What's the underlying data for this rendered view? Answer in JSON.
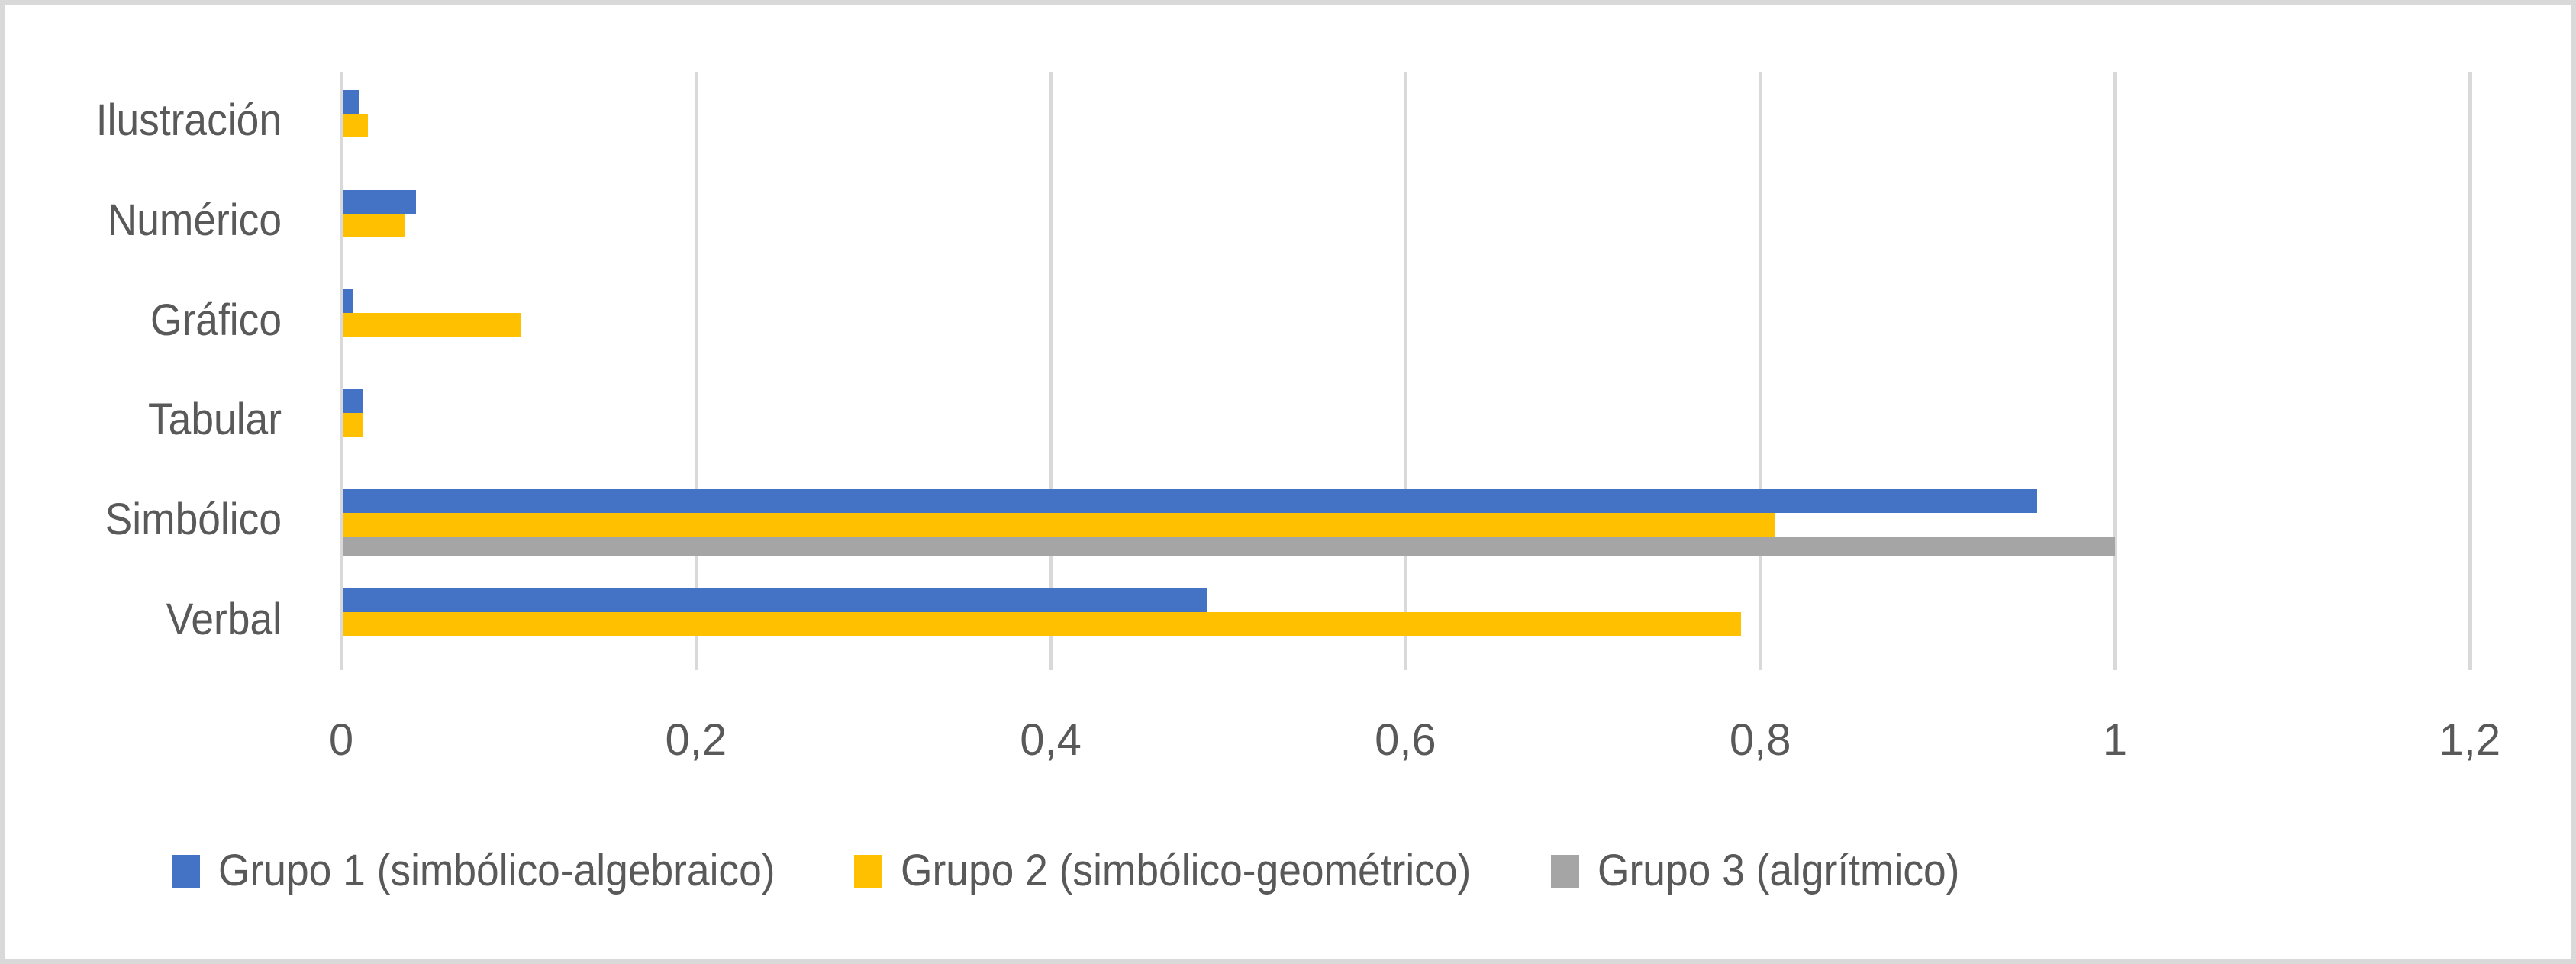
{
  "chart_data": {
    "type": "bar",
    "orientation": "horizontal",
    "title": "",
    "xlabel": "",
    "ylabel": "",
    "categories": [
      "Ilustración",
      "Numérico",
      "Gráfico",
      "Tabular",
      "Simbólico",
      "Verbal"
    ],
    "series": [
      {
        "name": "Grupo 1 (simbólico-algebraico)",
        "color": "#4472c4",
        "values": [
          0.01,
          0.042,
          0.007,
          0.012,
          0.956,
          0.488
        ]
      },
      {
        "name": "Grupo 2 (simbólico-geométrico)",
        "color": "#ffc000",
        "values": [
          0.015,
          0.036,
          0.101,
          0.012,
          0.808,
          0.789
        ]
      },
      {
        "name": "Grupo 3 (algrítmico)",
        "color": "#a5a5a5",
        "values": [
          0,
          0,
          0,
          0,
          1.0,
          0
        ]
      }
    ],
    "xlim": [
      0,
      1.2
    ],
    "xticks": [
      "0",
      "0,2",
      "0,4",
      "0,6",
      "0,8",
      "1",
      "1,2"
    ],
    "grid": true,
    "legend_position": "bottom"
  },
  "axis": {
    "ticks": [
      "0",
      "0,2",
      "0,4",
      "0,6",
      "0,8",
      "1",
      "1,2"
    ]
  },
  "categories": [
    {
      "label": "Ilustración"
    },
    {
      "label": "Numérico"
    },
    {
      "label": "Gráfico"
    },
    {
      "label": "Tabular"
    },
    {
      "label": "Simbólico"
    },
    {
      "label": "Verbal"
    }
  ],
  "legend": [
    {
      "label": "Grupo 1 (simbólico-algebraico)",
      "color": "#4472c4"
    },
    {
      "label": "Grupo 2 (simbólico-geométrico)",
      "color": "#ffc000"
    },
    {
      "label": "Grupo 3 (algrítmico)",
      "color": "#a5a5a5"
    }
  ]
}
